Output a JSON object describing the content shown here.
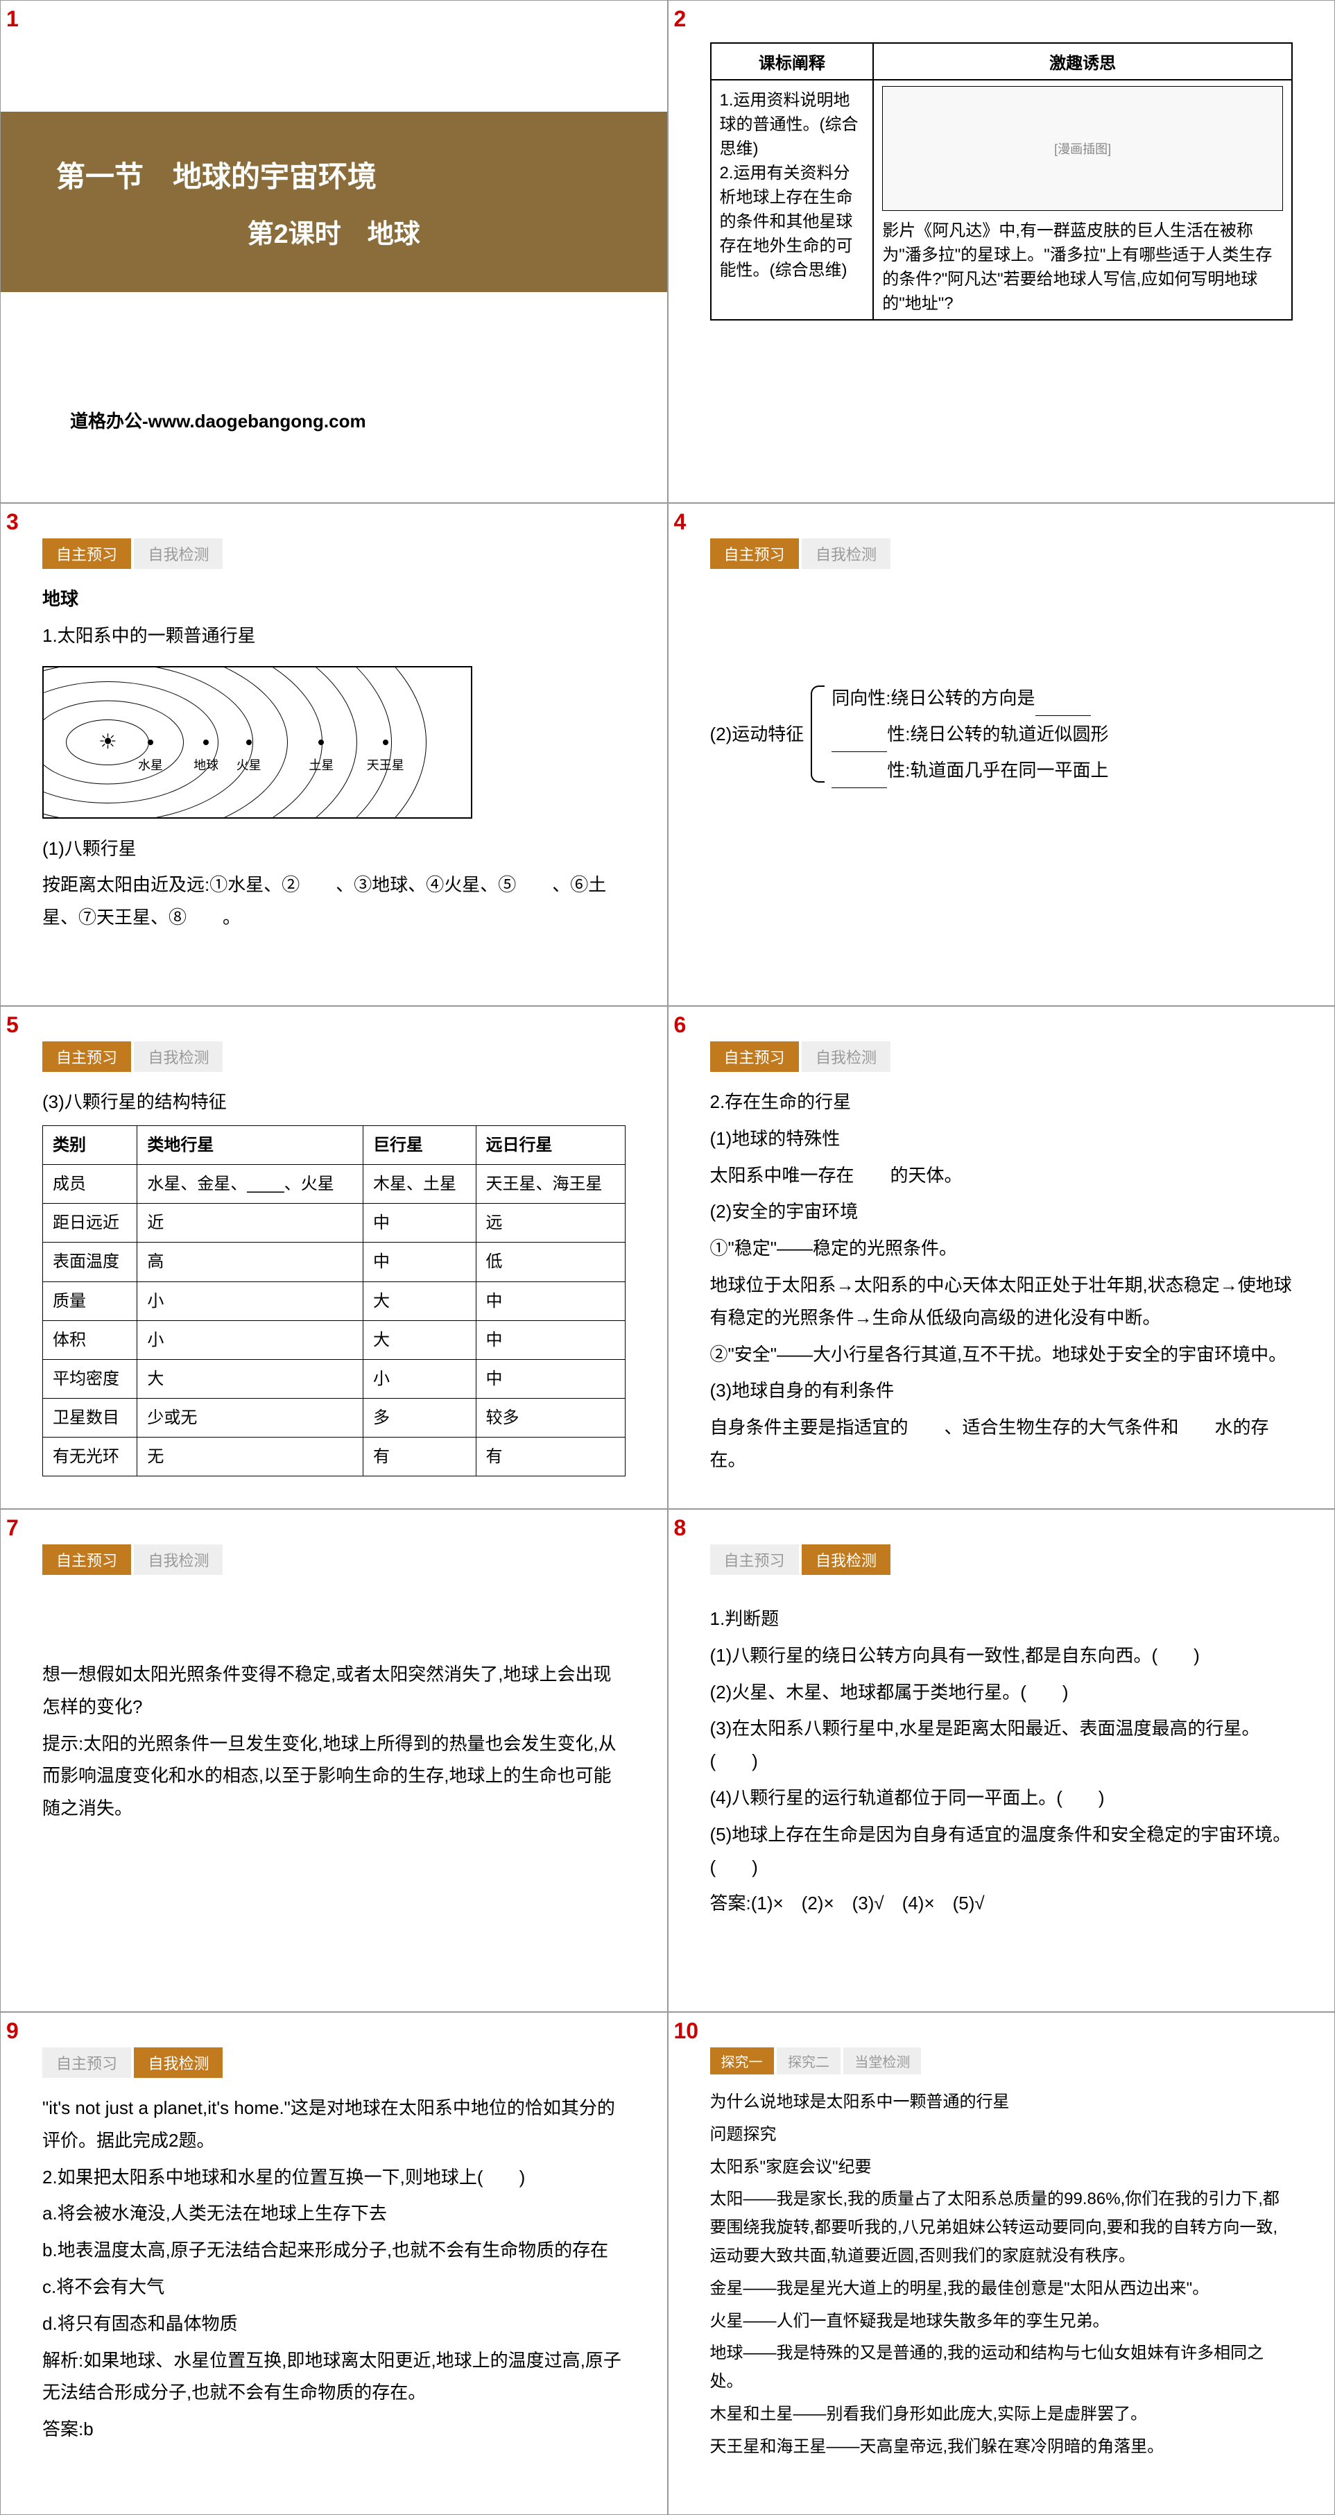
{
  "slides": {
    "s1": {
      "num": "1",
      "title_main": "第一节　地球的宇宙环境",
      "title_sub": "第2课时　地球",
      "footer": "道格办公-www.daogebangong.com"
    },
    "s2": {
      "num": "2",
      "col1_header": "课标阐释",
      "col2_header": "激趣诱思",
      "col1_text": "1.运用资料说明地球的普通性。(综合思维)\n2.运用有关资料分析地球上存在生命的条件和其他星球存在地外生命的可能性。(综合思维)",
      "col2_text": "影片《阿凡达》中,有一群蓝皮肤的巨人生活在被称为\"潘多拉\"的星球上。\"潘多拉\"上有哪些适于人类生存的条件?\"阿凡达\"若要给地球人写信,应如何写明地球的\"地址\"?",
      "img_placeholder": "[漫画插图]"
    },
    "s3": {
      "num": "3",
      "tab1": "自主预习",
      "tab2": "自我检测",
      "heading": "地球",
      "line1": "1.太阳系中的一颗普通行星",
      "planets": [
        "水星",
        "地球",
        "火星",
        "土星",
        "天王星"
      ],
      "line2": "(1)八颗行星",
      "line3": "按距离太阳由近及远:①水星、②　　、③地球、④火星、⑤　　、⑥土星、⑦天王星、⑧　　。",
      "orbits": [
        60,
        110,
        160,
        210,
        260,
        310,
        360,
        410,
        460
      ]
    },
    "s4": {
      "num": "4",
      "tab1": "自主预习",
      "tab2": "自我检测",
      "label": "(2)运动特征",
      "item1": "同向性:绕日公转的方向是",
      "item2": "性:绕日公转的轨道近似圆形",
      "item3": "性:轨道面几乎在同一平面上"
    },
    "s5": {
      "num": "5",
      "tab1": "自主预习",
      "tab2": "自我检测",
      "caption": "(3)八颗行星的结构特征",
      "headers": [
        "类别",
        "类地行星",
        "巨行星",
        "远日行星"
      ],
      "rows": [
        [
          "成员",
          "水星、金星、____、火星",
          "木星、土星",
          "天王星、海王星"
        ],
        [
          "距日远近",
          "近",
          "中",
          "远"
        ],
        [
          "表面温度",
          "高",
          "中",
          "低"
        ],
        [
          "质量",
          "小",
          "大",
          "中"
        ],
        [
          "体积",
          "小",
          "大",
          "中"
        ],
        [
          "平均密度",
          "大",
          "小",
          "中"
        ],
        [
          "卫星数目",
          "少或无",
          "多",
          "较多"
        ],
        [
          "有无光环",
          "无",
          "有",
          "有"
        ]
      ]
    },
    "s6": {
      "num": "6",
      "tab1": "自主预习",
      "tab2": "自我检测",
      "lines": [
        "2.存在生命的行星",
        "(1)地球的特殊性",
        "太阳系中唯一存在　　的天体。",
        "(2)安全的宇宙环境",
        "①\"稳定\"——稳定的光照条件。",
        "地球位于太阳系→太阳系的中心天体太阳正处于壮年期,状态稳定→使地球有稳定的光照条件→生命从低级向高级的进化没有中断。",
        "②\"安全\"——大小行星各行其道,互不干扰。地球处于安全的宇宙环境中。",
        "(3)地球自身的有利条件",
        "自身条件主要是指适宜的　　、适合生物生存的大气条件和　　水的存在。"
      ]
    },
    "s7": {
      "num": "7",
      "tab1": "自主预习",
      "tab2": "自我检测",
      "lines": [
        "想一想假如太阳光照条件变得不稳定,或者太阳突然消失了,地球上会出现怎样的变化?",
        "提示:太阳的光照条件一旦发生变化,地球上所得到的热量也会发生变化,从而影响温度变化和水的相态,以至于影响生命的生存,地球上的生命也可能随之消失。"
      ]
    },
    "s8": {
      "num": "8",
      "tab1": "自主预习",
      "tab2": "自我检测",
      "lines": [
        "1.判断题",
        "(1)八颗行星的绕日公转方向具有一致性,都是自东向西。(　　)",
        "(2)火星、木星、地球都属于类地行星。(　　)",
        "(3)在太阳系八颗行星中,水星是距离太阳最近、表面温度最高的行星。(　　)",
        "(4)八颗行星的运行轨道都位于同一平面上。(　　)",
        "(5)地球上存在生命是因为自身有适宜的温度条件和安全稳定的宇宙环境。(　　)",
        "答案:(1)×　(2)×　(3)√　(4)×　(5)√"
      ]
    },
    "s9": {
      "num": "9",
      "tab1": "自主预习",
      "tab2": "自我检测",
      "lines": [
        "\"it's not just a planet,it's home.\"这是对地球在太阳系中地位的恰如其分的评价。据此完成2题。",
        "2.如果把太阳系中地球和水星的位置互换一下,则地球上(　　)",
        "a.将会被水淹没,人类无法在地球上生存下去",
        "b.地表温度太高,原子无法结合起来形成分子,也就不会有生命物质的存在",
        "c.将不会有大气",
        "d.将只有固态和晶体物质",
        "解析:如果地球、水星位置互换,即地球离太阳更近,地球上的温度过高,原子无法结合形成分子,也就不会有生命物质的存在。",
        "答案:b"
      ]
    },
    "s10": {
      "num": "10",
      "tab1": "探究一",
      "tab2": "探究二",
      "tab3": "当堂检测",
      "lines": [
        "为什么说地球是太阳系中一颗普通的行星",
        "问题探究",
        "太阳系\"家庭会议\"纪要",
        "太阳——我是家长,我的质量占了太阳系总质量的99.86%,你们在我的引力下,都要围绕我旋转,都要听我的,八兄弟姐妹公转运动要同向,要和我的自转方向一致,运动要大致共面,轨道要近圆,否则我们的家庭就没有秩序。",
        "金星——我是星光大道上的明星,我的最佳创意是\"太阳从西边出来\"。",
        "火星——人们一直怀疑我是地球失散多年的孪生兄弟。",
        "地球——我是特殊的又是普通的,我的运动和结构与七仙女姐妹有许多相同之处。",
        "木星和土星——别看我们身形如此庞大,实际上是虚胖罢了。",
        "天王星和海王星——天高皇帝远,我们躲在寒冷阴暗的角落里。"
      ]
    }
  },
  "colors": {
    "title_bg": "#8a6d3b",
    "tab_active": "#c27a1e",
    "slide_num": "#c00"
  }
}
